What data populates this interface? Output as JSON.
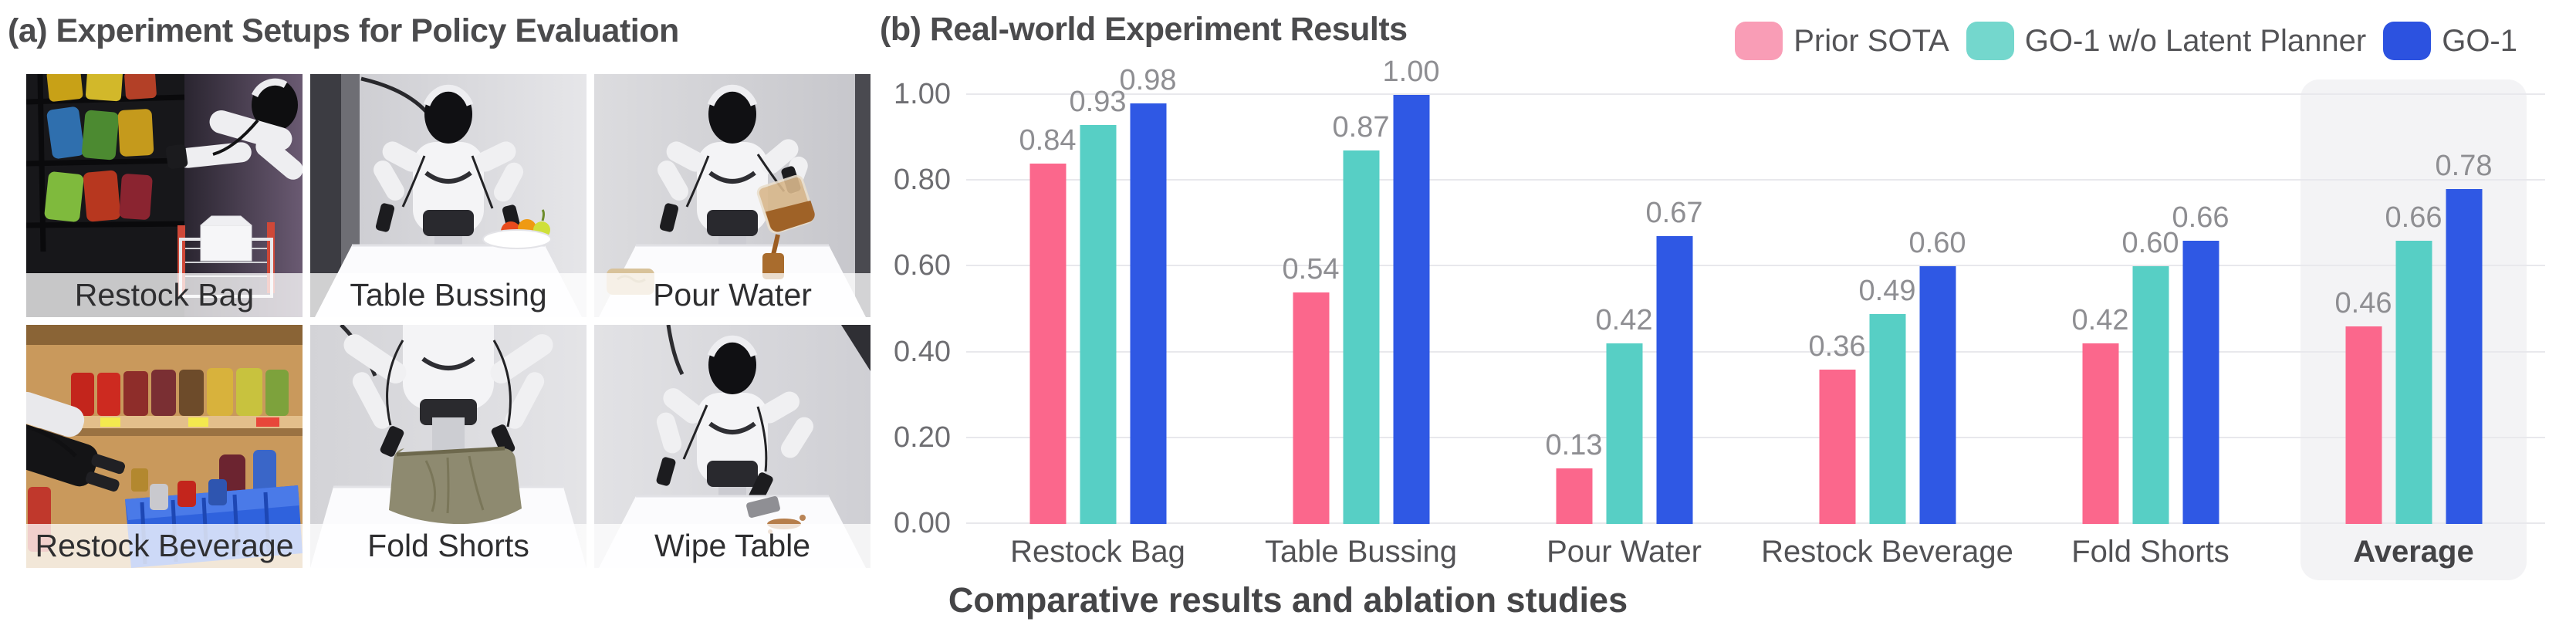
{
  "panel_a": {
    "title": "(a) Experiment Setups for Policy Evaluation",
    "photos": [
      {
        "label": "Restock Bag"
      },
      {
        "label": "Table Bussing"
      },
      {
        "label": "Pour Water"
      },
      {
        "label": "Restock Beverage"
      },
      {
        "label": "Fold Shorts"
      },
      {
        "label": "Wipe Table"
      }
    ]
  },
  "panel_b": {
    "title": "(b) Real-world Experiment Results",
    "caption": "Comparative results and ablation studies"
  },
  "legend": {
    "position": "top-right",
    "items": [
      {
        "label": "Prior SOTA",
        "color": "#F99DB6"
      },
      {
        "label": "GO-1 w/o Latent Planner",
        "color": "#74D7CD"
      },
      {
        "label": "GO-1",
        "color": "#2C52E0"
      }
    ]
  },
  "chart_data": {
    "type": "bar",
    "title": "(b) Real-world Experiment Results",
    "categories": [
      "Restock Bag",
      "Table Bussing",
      "Pour Water",
      "Restock Beverage",
      "Fold Shorts",
      "Average"
    ],
    "series": [
      {
        "name": "Prior SOTA",
        "color": "#FB678C",
        "values": [
          0.84,
          0.54,
          0.13,
          0.36,
          0.42,
          0.46
        ]
      },
      {
        "name": "GO-1 w/o Latent Planner",
        "color": "#57CFC5",
        "values": [
          0.93,
          0.87,
          0.42,
          0.49,
          0.6,
          0.66
        ]
      },
      {
        "name": "GO-1",
        "color": "#2F58E4",
        "values": [
          0.98,
          1.0,
          0.67,
          0.6,
          0.66,
          0.78
        ]
      }
    ],
    "ylim": [
      0,
      1.0
    ],
    "yticks": [
      "0.00",
      "0.20",
      "0.40",
      "0.60",
      "0.80",
      "1.00"
    ],
    "grid": true,
    "legend_position": "top-right",
    "value_labels": "shown above each bar, 2 decimals",
    "highlighted_category": "Average",
    "xlabel": "",
    "ylabel": ""
  }
}
